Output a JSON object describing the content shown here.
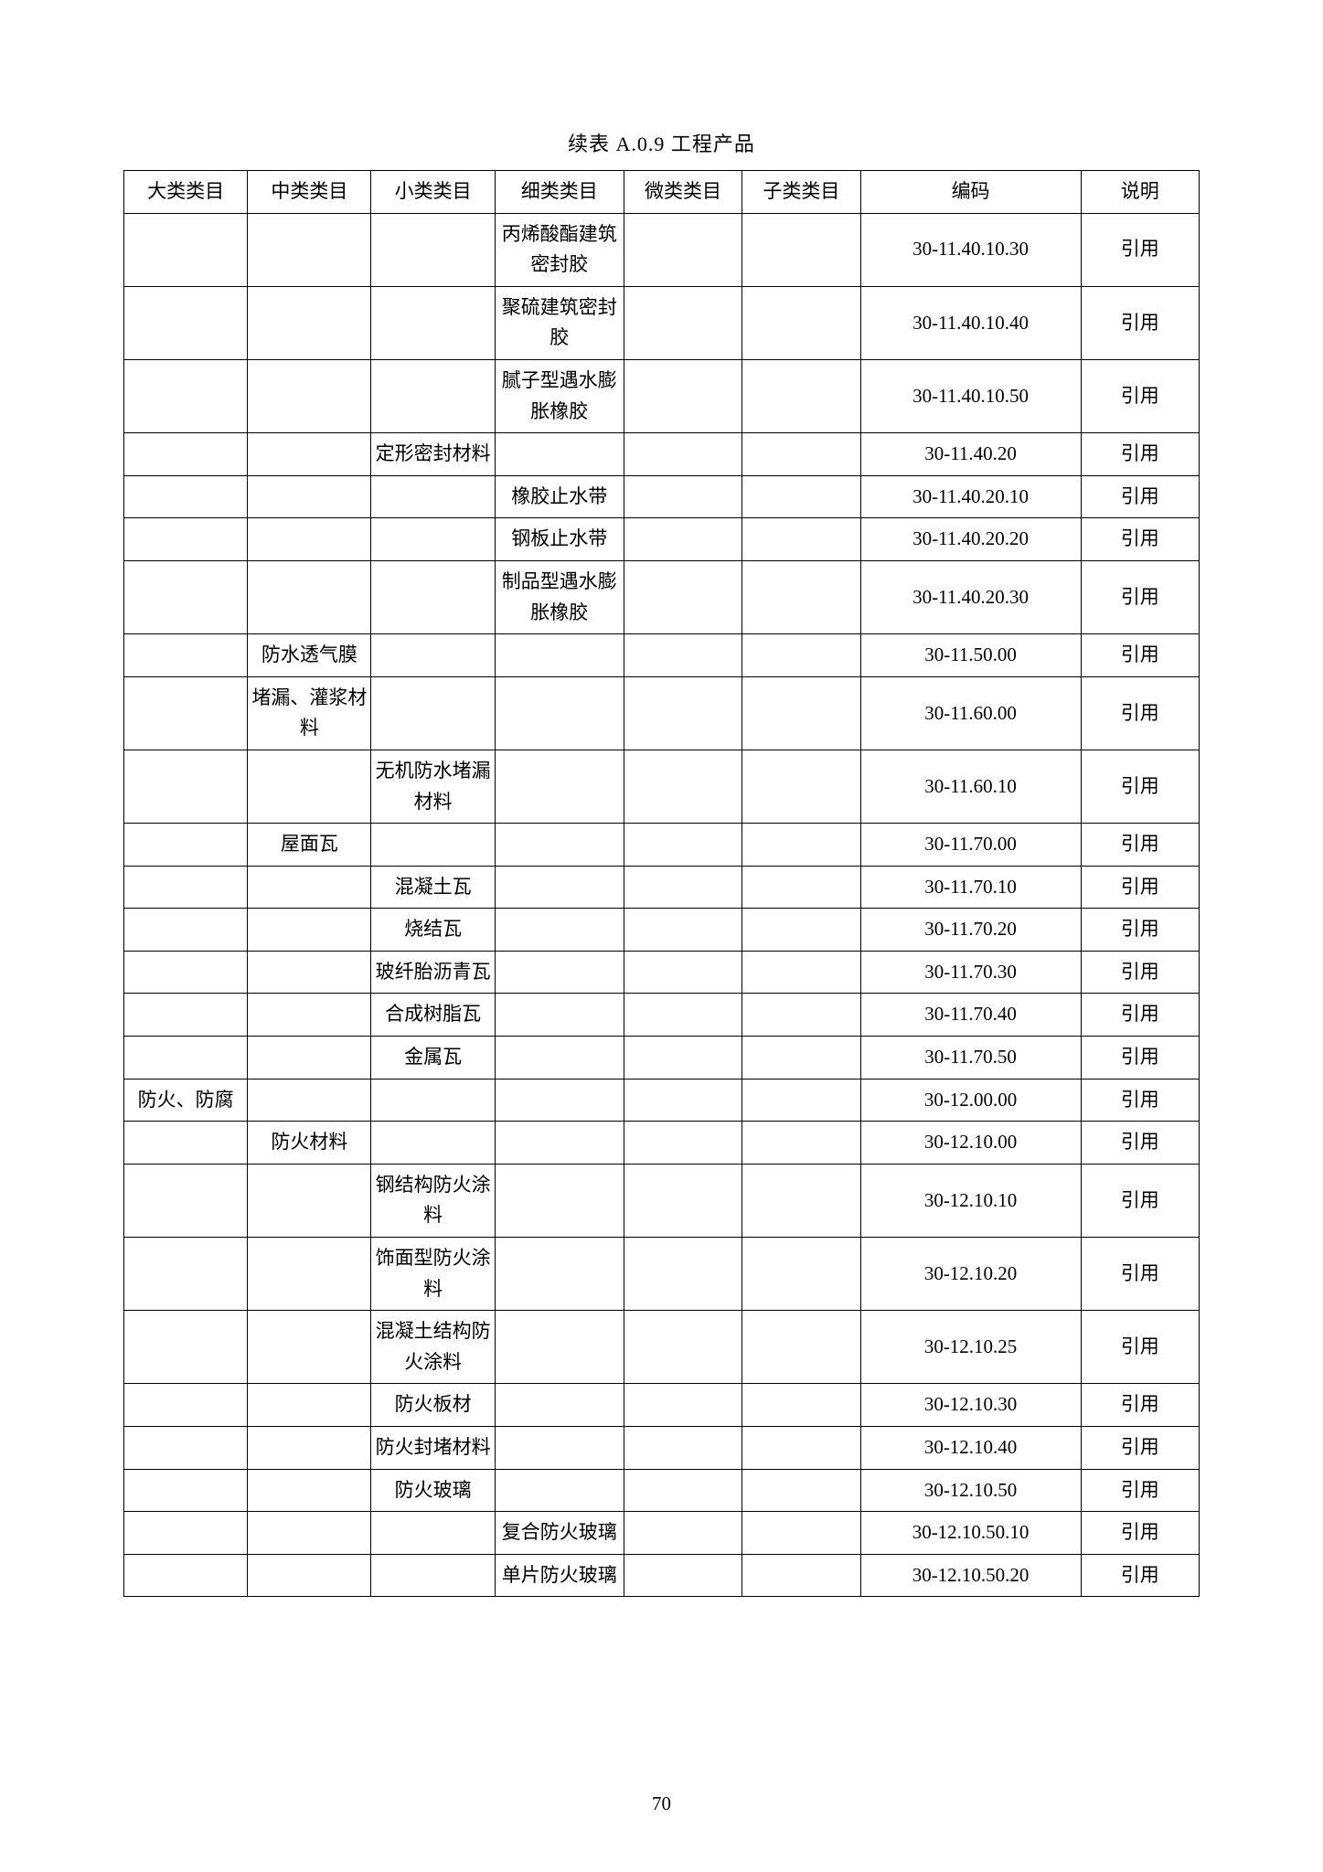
{
  "title": "续表 A.0.9   工程产品",
  "pageNumber": "70",
  "columns": [
    "大类类目",
    "中类类目",
    "小类类目",
    "细类类目",
    "微类类目",
    "子类类目",
    "编码",
    "说明"
  ],
  "col_widths": [
    "11.5%",
    "11.5%",
    "11.5%",
    "12%",
    "11%",
    "11%",
    "20.5%",
    "11%"
  ],
  "border_color": "#000000",
  "background_color": "#ffffff",
  "text_color": "#000000",
  "font_family": "SimSun",
  "header_fontsize": 21,
  "cell_fontsize": 21,
  "title_fontsize": 22,
  "rows": [
    {
      "c1": "",
      "c2": "",
      "c3": "",
      "c4": "丙烯酸酯建筑密封胶",
      "c5": "",
      "c6": "",
      "c7": "30-11.40.10.30",
      "c8": "引用",
      "two": true
    },
    {
      "c1": "",
      "c2": "",
      "c3": "",
      "c4": "聚硫建筑密封胶",
      "c5": "",
      "c6": "",
      "c7": "30-11.40.10.40",
      "c8": "引用",
      "two": true
    },
    {
      "c1": "",
      "c2": "",
      "c3": "",
      "c4": "腻子型遇水膨胀橡胶",
      "c5": "",
      "c6": "",
      "c7": "30-11.40.10.50",
      "c8": "引用",
      "two": true
    },
    {
      "c1": "",
      "c2": "",
      "c3": "定形密封材料",
      "c4": "",
      "c5": "",
      "c6": "",
      "c7": "30-11.40.20",
      "c8": "引用",
      "two": true
    },
    {
      "c1": "",
      "c2": "",
      "c3": "",
      "c4": "橡胶止水带",
      "c5": "",
      "c6": "",
      "c7": "30-11.40.20.10",
      "c8": "引用"
    },
    {
      "c1": "",
      "c2": "",
      "c3": "",
      "c4": "钢板止水带",
      "c5": "",
      "c6": "",
      "c7": "30-11.40.20.20",
      "c8": "引用"
    },
    {
      "c1": "",
      "c2": "",
      "c3": "",
      "c4": "制品型遇水膨胀橡胶",
      "c5": "",
      "c6": "",
      "c7": "30-11.40.20.30",
      "c8": "引用",
      "two": true
    },
    {
      "c1": "",
      "c2": "防水透气膜",
      "c3": "",
      "c4": "",
      "c5": "",
      "c6": "",
      "c7": "30-11.50.00",
      "c8": "引用"
    },
    {
      "c1": "",
      "c2": "堵漏、灌浆材料",
      "c3": "",
      "c4": "",
      "c5": "",
      "c6": "",
      "c7": "30-11.60.00",
      "c8": "引用",
      "two": true
    },
    {
      "c1": "",
      "c2": "",
      "c3": "无机防水堵漏材料",
      "c4": "",
      "c5": "",
      "c6": "",
      "c7": "30-11.60.10",
      "c8": "引用",
      "two": true
    },
    {
      "c1": "",
      "c2": "屋面瓦",
      "c3": "",
      "c4": "",
      "c5": "",
      "c6": "",
      "c7": "30-11.70.00",
      "c8": "引用"
    },
    {
      "c1": "",
      "c2": "",
      "c3": "混凝土瓦",
      "c4": "",
      "c5": "",
      "c6": "",
      "c7": "30-11.70.10",
      "c8": "引用"
    },
    {
      "c1": "",
      "c2": "",
      "c3": "烧结瓦",
      "c4": "",
      "c5": "",
      "c6": "",
      "c7": "30-11.70.20",
      "c8": "引用"
    },
    {
      "c1": "",
      "c2": "",
      "c3": "玻纤胎沥青瓦",
      "c4": "",
      "c5": "",
      "c6": "",
      "c7": "30-11.70.30",
      "c8": "引用",
      "two": true
    },
    {
      "c1": "",
      "c2": "",
      "c3": "合成树脂瓦",
      "c4": "",
      "c5": "",
      "c6": "",
      "c7": "30-11.70.40",
      "c8": "引用"
    },
    {
      "c1": "",
      "c2": "",
      "c3": "金属瓦",
      "c4": "",
      "c5": "",
      "c6": "",
      "c7": "30-11.70.50",
      "c8": "引用"
    },
    {
      "c1": "防火、防腐",
      "c2": "",
      "c3": "",
      "c4": "",
      "c5": "",
      "c6": "",
      "c7": "30-12.00.00",
      "c8": "引用"
    },
    {
      "c1": "",
      "c2": "防火材料",
      "c3": "",
      "c4": "",
      "c5": "",
      "c6": "",
      "c7": "30-12.10.00",
      "c8": "引用"
    },
    {
      "c1": "",
      "c2": "",
      "c3": "钢结构防火涂料",
      "c4": "",
      "c5": "",
      "c6": "",
      "c7": "30-12.10.10",
      "c8": "引用",
      "two": true
    },
    {
      "c1": "",
      "c2": "",
      "c3": "饰面型防火涂料",
      "c4": "",
      "c5": "",
      "c6": "",
      "c7": "30-12.10.20",
      "c8": "引用",
      "two": true
    },
    {
      "c1": "",
      "c2": "",
      "c3": "混凝土结构防火涂料",
      "c4": "",
      "c5": "",
      "c6": "",
      "c7": "30-12.10.25",
      "c8": "引用",
      "two": true
    },
    {
      "c1": "",
      "c2": "",
      "c3": "防火板材",
      "c4": "",
      "c5": "",
      "c6": "",
      "c7": "30-12.10.30",
      "c8": "引用"
    },
    {
      "c1": "",
      "c2": "",
      "c3": "防火封堵材料",
      "c4": "",
      "c5": "",
      "c6": "",
      "c7": "30-12.10.40",
      "c8": "引用",
      "two": true
    },
    {
      "c1": "",
      "c2": "",
      "c3": "防火玻璃",
      "c4": "",
      "c5": "",
      "c6": "",
      "c7": "30-12.10.50",
      "c8": "引用"
    },
    {
      "c1": "",
      "c2": "",
      "c3": "",
      "c4": "复合防火玻璃",
      "c5": "",
      "c6": "",
      "c7": "30-12.10.50.10",
      "c8": "引用",
      "two": true
    },
    {
      "c1": "",
      "c2": "",
      "c3": "",
      "c4": "单片防火玻璃",
      "c5": "",
      "c6": "",
      "c7": "30-12.10.50.20",
      "c8": "引用",
      "two": true
    }
  ]
}
